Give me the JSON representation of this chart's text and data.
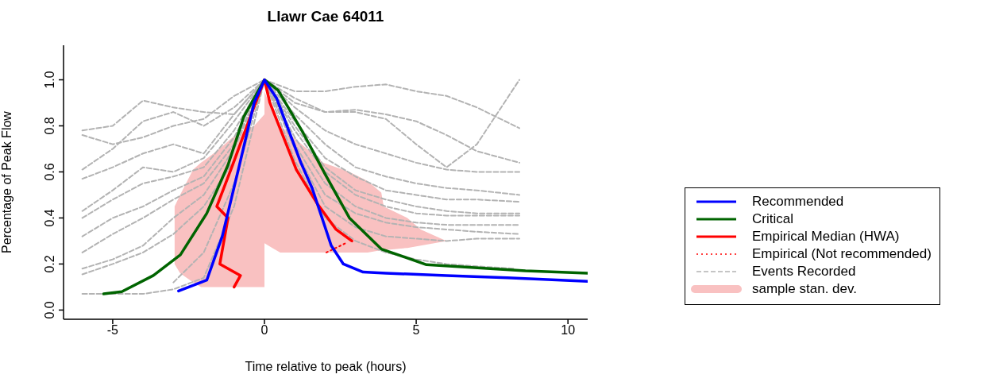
{
  "chart_data": {
    "type": "line",
    "title": "Llawr Cae 64011",
    "xlabel": "Time relative to peak (hours)",
    "ylabel": "Percentage of Peak Flow",
    "xlim": [
      -6.62,
      10.65
    ],
    "xticks": [
      -5,
      0,
      5,
      10
    ],
    "ylim": [
      -0.04,
      1.15
    ],
    "yticks": [
      {
        "value": 0,
        "label": "0.0"
      },
      {
        "value": 0.2,
        "label": "0.2"
      },
      {
        "value": 0.4,
        "label": "0.4"
      },
      {
        "value": 0.6,
        "label": "0.6"
      },
      {
        "value": 0.8,
        "label": "0.8"
      },
      {
        "value": 1,
        "label": "1.0"
      }
    ],
    "grid": false,
    "legend": "right",
    "marker": "none",
    "series": [
      {
        "type": "area",
        "name": "sample stan. dev.",
        "color": "#f9c1c1",
        "x": [
          -2.96,
          -2.78,
          -2.35,
          -2.09,
          -1.57,
          -1.05,
          -0.34,
          0,
          0,
          0.26,
          0.52,
          1.93,
          2.8,
          3.4,
          3.85,
          3.93,
          4.71,
          5.15,
          6.0
        ],
        "values": [
          null,
          null,
          null,
          null,
          null,
          null,
          null,
          null,
          null,
          null,
          null,
          null,
          null,
          null,
          null,
          null,
          null,
          null,
          null
        ],
        "lower": [
          0.2,
          0.16,
          0.12,
          0.1,
          0.1,
          0.1,
          0.1,
          0.1,
          0.29,
          0.27,
          0.25,
          0.25,
          0.25,
          0.25,
          0.26,
          0.26,
          0.27,
          0.28,
          0.3
        ],
        "upper": [
          0.45,
          0.5,
          0.61,
          0.64,
          0.69,
          0.75,
          0.8,
          0.85,
          0.95,
          0.86,
          0.8,
          0.64,
          0.6,
          0.56,
          0.51,
          0.45,
          0.4,
          0.35,
          0.3
        ]
      },
      {
        "type": "line",
        "name": "Events Recorded",
        "color": "#b3b3b3",
        "line_style": "dashed",
        "x": [
          -6,
          -5,
          -4,
          -3,
          -2,
          -1,
          0,
          1,
          2,
          3,
          4,
          5,
          6,
          7,
          8.4
        ],
        "values": [
          0.78,
          0.8,
          0.91,
          0.88,
          0.86,
          0.85,
          1.0,
          0.95,
          0.95,
          0.97,
          0.98,
          0.95,
          0.93,
          0.88,
          0.79
        ]
      },
      {
        "type": "line",
        "color": "#b3b3b3",
        "line_style": "dashed",
        "x": [
          -6,
          -5,
          -4,
          -3,
          -2,
          -1,
          0,
          1,
          2,
          3,
          4,
          5,
          6,
          7,
          8.4
        ],
        "values": [
          0.76,
          0.72,
          0.75,
          0.8,
          0.83,
          0.93,
          1.0,
          0.92,
          0.86,
          0.86,
          0.83,
          0.72,
          0.62,
          0.72,
          1.0
        ]
      },
      {
        "type": "line",
        "color": "#b3b3b3",
        "line_style": "dashed",
        "x": [
          -6,
          -5,
          -4,
          -3,
          -2,
          -1,
          0,
          1,
          2,
          3,
          4,
          5,
          6,
          7,
          8.4
        ],
        "values": [
          0.61,
          0.7,
          0.82,
          0.86,
          0.8,
          0.88,
          1.0,
          0.9,
          0.86,
          0.87,
          0.85,
          0.82,
          0.76,
          0.69,
          0.64
        ]
      },
      {
        "type": "line",
        "color": "#b3b3b3",
        "line_style": "dashed",
        "x": [
          -6,
          -5,
          -4,
          -3,
          -2,
          -1,
          0,
          1,
          2,
          3,
          4,
          5,
          6,
          7,
          8.4
        ],
        "values": [
          0.57,
          0.62,
          0.68,
          0.72,
          0.68,
          0.85,
          1.0,
          0.88,
          0.78,
          0.72,
          0.68,
          0.64,
          0.61,
          0.6,
          0.6
        ]
      },
      {
        "type": "line",
        "color": "#b3b3b3",
        "line_style": "dashed",
        "x": [
          -6,
          -5,
          -4,
          -3,
          -2,
          -1,
          0,
          1,
          2,
          3,
          4,
          5,
          6,
          7,
          8.4
        ],
        "values": [
          0.43,
          0.52,
          0.62,
          0.6,
          0.66,
          0.82,
          1.0,
          0.85,
          0.72,
          0.62,
          0.58,
          0.55,
          0.53,
          0.52,
          0.5
        ]
      },
      {
        "type": "line",
        "color": "#b3b3b3",
        "line_style": "dashed",
        "x": [
          -6,
          -5,
          -4,
          -3,
          -2,
          -1,
          0,
          1,
          2,
          3,
          4,
          5,
          6,
          7,
          8.4
        ],
        "values": [
          0.4,
          0.48,
          0.55,
          0.58,
          0.62,
          0.78,
          1.0,
          0.82,
          0.66,
          0.58,
          0.52,
          0.5,
          0.48,
          0.48,
          0.47
        ]
      },
      {
        "type": "line",
        "color": "#b3b3b3",
        "line_style": "dashed",
        "x": [
          -6,
          -5,
          -4,
          -3,
          -2,
          -1,
          0,
          1,
          2,
          3,
          4,
          5,
          6,
          7,
          8.4
        ],
        "values": [
          0.32,
          0.4,
          0.45,
          0.52,
          0.58,
          0.75,
          1.0,
          0.8,
          0.62,
          0.52,
          0.48,
          0.45,
          0.43,
          0.42,
          0.42
        ]
      },
      {
        "type": "line",
        "color": "#b3b3b3",
        "line_style": "dashed",
        "x": [
          -6,
          -5,
          -4,
          -3,
          -2,
          -1,
          0,
          1,
          2,
          3,
          4,
          5,
          6,
          7,
          8.4
        ],
        "values": [
          0.25,
          0.33,
          0.4,
          0.48,
          0.55,
          0.72,
          1.0,
          0.78,
          0.6,
          0.5,
          0.45,
          0.42,
          0.41,
          0.41,
          0.41
        ]
      },
      {
        "type": "line",
        "color": "#b3b3b3",
        "line_style": "dashed",
        "x": [
          -6,
          -5,
          -4,
          -3,
          -2,
          -1,
          0,
          1,
          2,
          3,
          4,
          5,
          6,
          7,
          8.4
        ],
        "values": [
          0.18,
          0.22,
          0.28,
          0.4,
          0.5,
          0.7,
          1.0,
          0.75,
          0.55,
          0.45,
          0.4,
          0.38,
          0.37,
          0.37,
          0.37
        ]
      },
      {
        "type": "line",
        "color": "#b3b3b3",
        "line_style": "dashed",
        "x": [
          -6,
          -5,
          -4,
          -3,
          -2,
          -1,
          0,
          1,
          2,
          3,
          4,
          5,
          6,
          7,
          8.4
        ],
        "values": [
          0.155,
          0.2,
          0.25,
          0.33,
          0.45,
          0.65,
          1.0,
          0.72,
          0.5,
          0.42,
          0.38,
          0.36,
          0.35,
          0.34,
          0.33
        ]
      },
      {
        "type": "line",
        "color": "#b3b3b3",
        "line_style": "dashed",
        "x": [
          -6,
          -5,
          -4,
          -3,
          -2,
          -1,
          0,
          1,
          2,
          3,
          4,
          5,
          6,
          7,
          8.4
        ],
        "values": [
          0.07,
          0.07,
          0.07,
          0.09,
          0.14,
          0.45,
          1.0,
          0.7,
          0.45,
          0.36,
          0.32,
          0.31,
          0.3,
          0.31,
          0.31
        ]
      },
      {
        "type": "line",
        "color": "#b3b3b3",
        "line_style": "dashed",
        "x": [
          -3,
          -2,
          -1,
          0,
          1,
          2,
          3,
          4,
          5,
          6,
          7,
          8.2
        ],
        "values": [
          0.12,
          0.25,
          0.55,
          1.0,
          0.65,
          0.4,
          0.3,
          0.25,
          0.22,
          0.2,
          0.19,
          0.18
        ]
      },
      {
        "type": "line",
        "name": "Empirical (Not recommended)",
        "color": "#ff0000",
        "line_style": "dotted",
        "x": [
          2.04,
          2.67
        ],
        "values": [
          0.25,
          0.29
        ]
      },
      {
        "type": "line",
        "name": "Empirical Median (HWA)",
        "color": "#ff0000",
        "line_style": "solid",
        "x": [
          -1.0,
          -0.79,
          -1.47,
          -1.2,
          -1.57,
          -1.05,
          -0.52,
          0,
          0.18,
          1.05,
          1.75,
          2.36,
          2.88
        ],
        "values": [
          0.1,
          0.15,
          0.2,
          0.4,
          0.45,
          0.63,
          0.82,
          1.0,
          0.9,
          0.61,
          0.46,
          0.35,
          0.3
        ]
      },
      {
        "type": "line",
        "name": "Critical",
        "color": "#006400",
        "line_style": "solid",
        "x": [
          -5.3,
          -4.7,
          -3.66,
          -2.77,
          -1.9,
          -1.2,
          -0.68,
          0,
          0.45,
          1.23,
          2.0,
          2.8,
          3.85,
          5.34,
          8.6,
          10.65
        ],
        "values": [
          0.07,
          0.08,
          0.15,
          0.24,
          0.42,
          0.63,
          0.84,
          1.0,
          0.955,
          0.78,
          0.59,
          0.4,
          0.265,
          0.197,
          0.17,
          0.16
        ]
      },
      {
        "type": "line",
        "name": "Recommended",
        "color": "#0000ff",
        "line_style": "solid",
        "x": [
          -2.83,
          -1.9,
          -1.39,
          -0.86,
          -0.34,
          0,
          0.4,
          0.8,
          1.2,
          1.57,
          2.2,
          2.6,
          3.25,
          4,
          6,
          8,
          10.65
        ],
        "values": [
          0.083,
          0.13,
          0.32,
          0.61,
          0.9,
          1.0,
          0.92,
          0.78,
          0.64,
          0.53,
          0.28,
          0.2,
          0.165,
          0.16,
          0.15,
          0.14,
          0.125
        ]
      }
    ]
  }
}
